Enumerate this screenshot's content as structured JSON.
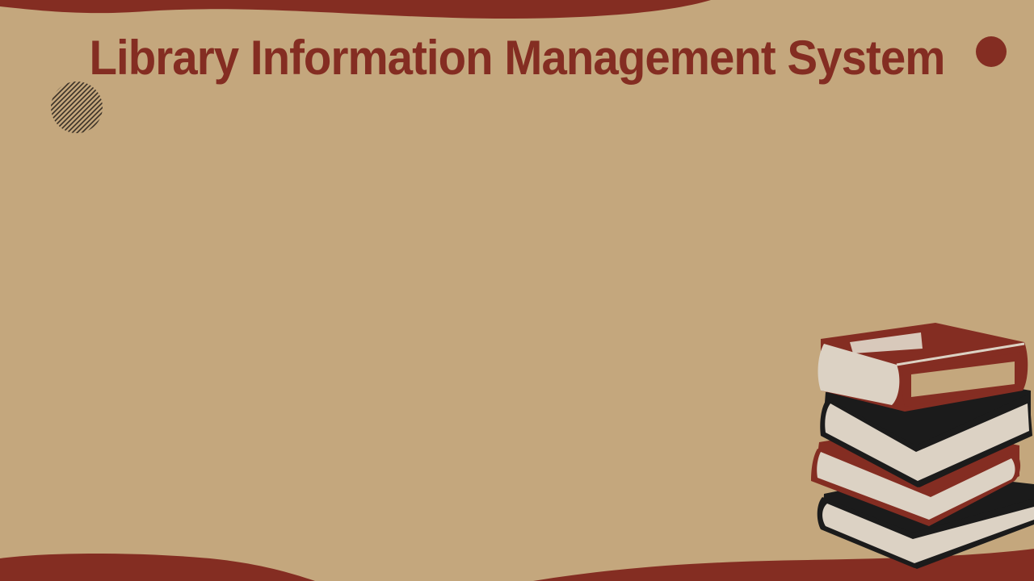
{
  "slide": {
    "title": "Library Information Management System"
  },
  "colors": {
    "background": "#C4A77D",
    "accent": "#842D22",
    "page": "#DCD2C4",
    "ink": "#1B1B1B"
  },
  "icons": {
    "decor_dot": "filled-circle",
    "decor_hatch": "hatched-circle",
    "illustration": "book-stack-icon"
  }
}
